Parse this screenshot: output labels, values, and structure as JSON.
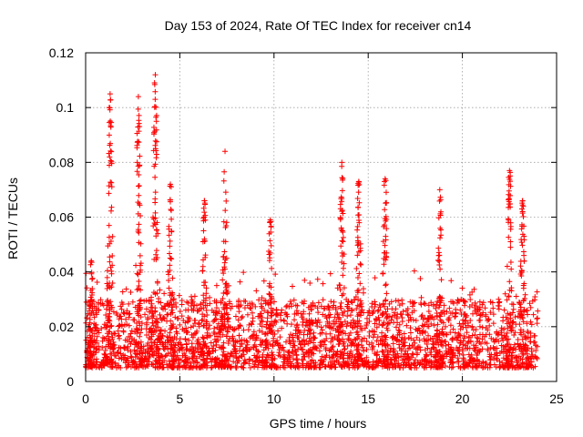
{
  "chart_data": {
    "type": "scatter",
    "title": "Day 153 of 2024, Rate Of TEC Index for receiver cn14",
    "xlabel": "GPS time / hours",
    "ylabel": "ROTI / TECUs",
    "xlim": [
      0,
      25
    ],
    "ylim": [
      0,
      0.12
    ],
    "x_ticks": [
      "0",
      "5",
      "10",
      "15",
      "20",
      "25"
    ],
    "y_ticks": [
      "0",
      "0.02",
      "0.04",
      "0.06",
      "0.08",
      "0.1",
      "0.12"
    ],
    "grid": true,
    "marker": "+",
    "color": "#ff0000",
    "data_span_hours": [
      0,
      24
    ],
    "baseline_band": [
      0.005,
      0.03
    ],
    "peaks": [
      {
        "x": 0.3,
        "y": 0.044
      },
      {
        "x": 1.3,
        "y": 0.105
      },
      {
        "x": 2.8,
        "y": 0.104
      },
      {
        "x": 3.7,
        "y": 0.112
      },
      {
        "x": 4.5,
        "y": 0.072
      },
      {
        "x": 6.3,
        "y": 0.066
      },
      {
        "x": 7.4,
        "y": 0.084
      },
      {
        "x": 9.8,
        "y": 0.059
      },
      {
        "x": 13.6,
        "y": 0.08
      },
      {
        "x": 14.5,
        "y": 0.073
      },
      {
        "x": 15.9,
        "y": 0.074
      },
      {
        "x": 18.8,
        "y": 0.07
      },
      {
        "x": 22.5,
        "y": 0.077
      },
      {
        "x": 23.2,
        "y": 0.066
      }
    ]
  }
}
